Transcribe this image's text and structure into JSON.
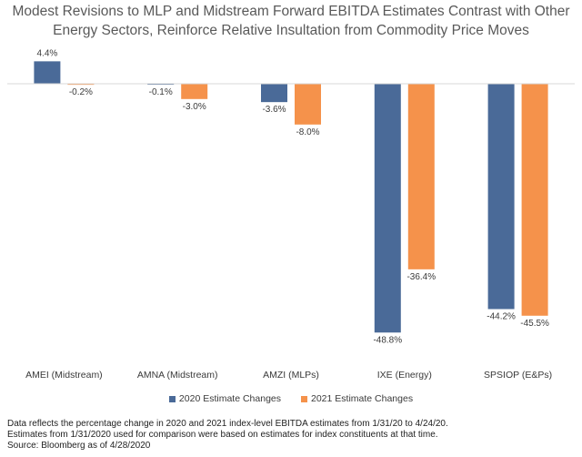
{
  "title_lines": [
    "Modest Revisions to MLP and Midstream Forward EBITDA Estimates Contrast with Other",
    "Energy Sectors, Reinforce Relative Insultation from Commodity Price Moves"
  ],
  "colors": {
    "series_2020": "#4a6a98",
    "series_2021": "#f5924b",
    "axis": "#d9d9d9"
  },
  "footnotes": [
    "Data reflects the percentage change in 2020 and 2021 index-level EBITDA estimates from 1/31/20 to 4/24/20.",
    "Estimates from 1/31/2020 used for comparison were based on estimates for index constituents at that time.",
    "Source: Bloomberg as of 4/28/2020"
  ],
  "chart_data": {
    "type": "bar",
    "title": "Modest Revisions to MLP and Midstream Forward EBITDA Estimates Contrast with Other Energy Sectors, Reinforce Relative Insultation from Commodity Price Moves",
    "categories": [
      "AMEI (Midstream)",
      "AMNA (Midstream)",
      "AMZI (MLPs)",
      "IXE (Energy)",
      "SPSIOP (E&Ps)"
    ],
    "series": [
      {
        "name": "2020 Estimate Changes",
        "values": [
          4.4,
          -0.1,
          -3.6,
          -48.8,
          -44.2
        ],
        "labels": [
          "4.4%",
          "-0.1%",
          "-3.6%",
          "-48.8%",
          "-44.2%"
        ]
      },
      {
        "name": "2021 Estimate Changes",
        "values": [
          -0.2,
          -3.0,
          -8.0,
          -36.4,
          -45.5
        ],
        "labels": [
          "-0.2%",
          "-3.0%",
          "-8.0%",
          "-36.4%",
          "-45.5%"
        ]
      }
    ],
    "ylim": [
      -50,
      5
    ],
    "y_axis_visible": false,
    "grid": false,
    "legend_position": "bottom"
  }
}
